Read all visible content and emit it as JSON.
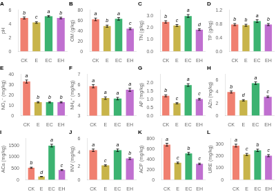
{
  "chart_data": [
    {
      "type": "bar",
      "title": "A",
      "ylabel": "pH",
      "categories": [
        "CK",
        "E",
        "EC",
        "EH"
      ],
      "values": [
        4.85,
        4.2,
        5.1,
        4.85
      ],
      "errors": [
        0.15,
        0.12,
        0.1,
        0.12
      ],
      "annotations": [
        "b",
        "c",
        "a",
        "b"
      ],
      "colors": [
        "#F08070",
        "#C8B44A",
        "#3CB371",
        "#C070D0"
      ],
      "ylim": [
        0,
        6
      ],
      "yticks": [
        0,
        2,
        4,
        6
      ],
      "grid": false
    },
    {
      "type": "bar",
      "title": "B",
      "ylabel": "OM (g/kg)",
      "categories": [
        "CK",
        "E",
        "EC",
        "EH"
      ],
      "values": [
        62,
        49,
        63,
        44
      ],
      "errors": [
        2.5,
        2.0,
        2.5,
        1.8
      ],
      "annotations": [
        "a",
        "b",
        "a",
        "c"
      ],
      "colors": [
        "#F08070",
        "#C8B44A",
        "#3CB371",
        "#C070D0"
      ],
      "ylim": [
        0,
        80
      ],
      "yticks": [
        0,
        20,
        40,
        60,
        80
      ],
      "grid": false
    },
    {
      "type": "bar",
      "title": "C",
      "ylabel": "TN (g/kg)",
      "categories": [
        "CK",
        "E",
        "EC",
        "EH"
      ],
      "values": [
        2.5,
        2.2,
        3.0,
        1.85
      ],
      "errors": [
        0.1,
        0.08,
        0.12,
        0.07
      ],
      "annotations": [
        "b",
        "c",
        "a",
        "d"
      ],
      "colors": [
        "#F08070",
        "#C8B44A",
        "#3CB371",
        "#C070D0"
      ],
      "ylim": [
        0.0,
        3.5
      ],
      "yticks": [
        {
          "value": 0,
          "label": "0.0"
        },
        {
          "value": 1,
          "label": "1.0"
        },
        {
          "value": 2,
          "label": "2.0"
        },
        {
          "value": 3,
          "label": "3.0"
        }
      ],
      "grid": false
    },
    {
      "type": "bar",
      "title": "D",
      "ylabel": "TP (g/kg)",
      "categories": [
        "CK",
        "E",
        "EC",
        "EH"
      ],
      "values": [
        0.78,
        0.76,
        0.88,
        0.78
      ],
      "errors": [
        0.03,
        0.03,
        0.04,
        0.03
      ],
      "annotations": [
        "b",
        "b",
        "a",
        "b"
      ],
      "colors": [
        "#F08070",
        "#C8B44A",
        "#3CB371",
        "#C070D0"
      ],
      "ylim": [
        0.0,
        1.2
      ],
      "yticks": [
        {
          "value": 0,
          "label": "0.0"
        },
        0.4,
        0.8,
        1.2
      ],
      "grid": false
    },
    {
      "type": "bar",
      "title": "E",
      "ylabel": "NO₃⁻ (mg/kg)",
      "categories": [
        "CK",
        "E",
        "EC",
        "EH"
      ],
      "values": [
        33,
        13,
        13,
        13
      ],
      "errors": [
        1.5,
        0.6,
        0.6,
        0.6
      ],
      "annotations": [
        "a",
        "b",
        "b",
        "b"
      ],
      "colors": [
        "#F08070",
        "#C8B44A",
        "#3CB371",
        "#C070D0"
      ],
      "ylim": [
        0,
        40
      ],
      "yticks": [
        0,
        10,
        20,
        30,
        40
      ],
      "grid": false
    },
    {
      "type": "bar",
      "title": "F",
      "ylabel": "NH₄⁺ (mg/kg)",
      "categories": [
        "CK",
        "E",
        "EC",
        "EH"
      ],
      "values": [
        5.85,
        4.7,
        4.65,
        5.5
      ],
      "errors": [
        0.15,
        0.12,
        0.12,
        0.15
      ],
      "annotations": [
        "a",
        "a",
        "a",
        "a"
      ],
      "colors": [
        "#F08070",
        "#C8B44A",
        "#3CB371",
        "#C070D0"
      ],
      "ylim": [
        3,
        7
      ],
      "yticks": [
        3,
        4,
        5,
        6,
        7
      ],
      "grid": false
    },
    {
      "type": "bar",
      "title": "G",
      "ylabel": "AP (mg/kg)",
      "categories": [
        "CK",
        "E",
        "EC",
        "EH"
      ],
      "values": [
        1.2,
        0.75,
        1.85,
        1.0
      ],
      "errors": [
        0.06,
        0.04,
        0.08,
        0.05
      ],
      "annotations": [
        "b",
        "c",
        "a",
        "c"
      ],
      "colors": [
        "#F08070",
        "#C8B44A",
        "#3CB371",
        "#C070D0"
      ],
      "ylim": [
        0.0,
        2.5
      ],
      "yticks": [
        {
          "value": 0,
          "label": "0.0"
        },
        0.5,
        {
          "value": 1,
          "label": "1.0"
        },
        1.5,
        {
          "value": 2,
          "label": "2.0"
        }
      ],
      "grid": false
    },
    {
      "type": "bar",
      "title": "H",
      "ylabel": "AZn (mg/kg)",
      "categories": [
        "CK",
        "E",
        "EC",
        "EH"
      ],
      "values": [
        4.0,
        2.6,
        5.5,
        3.2
      ],
      "errors": [
        0.18,
        0.12,
        0.22,
        0.14
      ],
      "annotations": [
        "b",
        "d",
        "a",
        "c"
      ],
      "colors": [
        "#F08070",
        "#C8B44A",
        "#3CB371",
        "#C070D0"
      ],
      "ylim": [
        0,
        7
      ],
      "yticks": [
        0,
        2,
        4,
        6
      ],
      "grid": false
    },
    {
      "type": "bar",
      "title": "I",
      "ylabel": "ACa (mg/kg)",
      "categories": [
        "CK",
        "E",
        "EC",
        "EH"
      ],
      "values": [
        530,
        145,
        1490,
        430
      ],
      "errors": [
        25,
        8,
        60,
        20
      ],
      "annotations": [
        "b",
        "d",
        "a",
        "c"
      ],
      "colors": [
        "#F08070",
        "#C8B44A",
        "#3CB371",
        "#C070D0"
      ],
      "ylim": [
        0,
        1800
      ],
      "yticks": [
        0,
        500,
        1000,
        1500
      ],
      "grid": false
    },
    {
      "type": "bar",
      "title": "J",
      "ylabel": "INV (mg/kg)",
      "categories": [
        "CK",
        "E",
        "EC",
        "EH"
      ],
      "values": [
        4.3,
        2.1,
        4.3,
        3.1
      ],
      "errors": [
        0.18,
        0.1,
        0.18,
        0.14
      ],
      "annotations": [
        "a",
        "c",
        "a",
        "b"
      ],
      "colors": [
        "#F08070",
        "#C8B44A",
        "#3CB371",
        "#C070D0"
      ],
      "ylim": [
        0,
        6
      ],
      "yticks": [
        0,
        2,
        4,
        6
      ],
      "grid": false
    },
    {
      "type": "bar",
      "title": "K",
      "ylabel": "ACP (mg/kg)",
      "categories": [
        "CK",
        "E",
        "EC",
        "EH"
      ],
      "values": [
        680,
        330,
        510,
        310
      ],
      "errors": [
        28,
        15,
        22,
        14
      ],
      "annotations": [
        "a",
        "c",
        "b",
        "c"
      ],
      "colors": [
        "#F08070",
        "#C8B44A",
        "#3CB371",
        "#C070D0"
      ],
      "ylim": [
        0,
        800
      ],
      "yticks": [
        0,
        200,
        400,
        600,
        800
      ],
      "grid": false
    },
    {
      "type": "bar",
      "title": "L",
      "ylabel": "URE (mg/kg)",
      "categories": [
        "CK",
        "E",
        "EC",
        "EH"
      ],
      "values": [
        290,
        215,
        250,
        205
      ],
      "errors": [
        12,
        9,
        10,
        9
      ],
      "annotations": [
        "a",
        "c",
        "b",
        "c"
      ],
      "colors": [
        "#F08070",
        "#C8B44A",
        "#3CB371",
        "#C070D0"
      ],
      "ylim": [
        0,
        350
      ],
      "yticks": [
        0,
        100,
        200,
        300
      ],
      "grid": false
    }
  ]
}
